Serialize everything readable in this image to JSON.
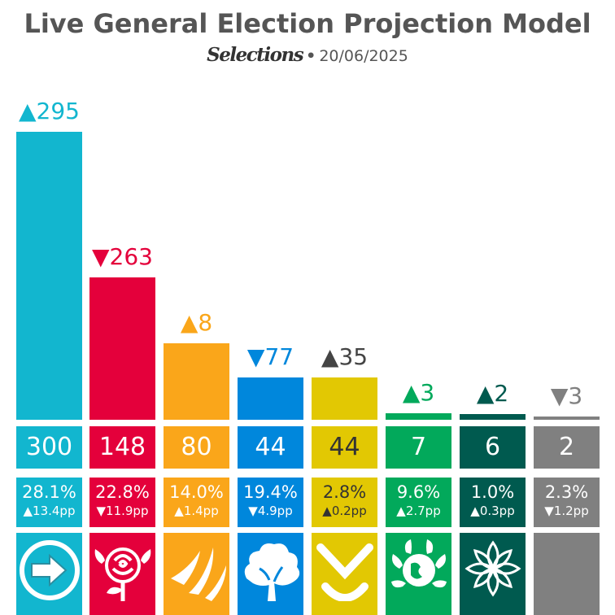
{
  "header": {
    "title": "Live General Election Projection Model",
    "brand": "Selections",
    "separator": "•",
    "date": "20/06/2025"
  },
  "colors": {
    "reform": "#12B6CF",
    "labour": "#E4003B",
    "libdem": "#FAA61A",
    "conservative": "#0087DC",
    "snp": "#E2C803",
    "green": "#02A95B",
    "independent": "#005A4F",
    "other": "#808080"
  },
  "chart_data": {
    "type": "bar",
    "title": "Live General Election Projection Model",
    "ylim": [
      0,
      300
    ],
    "series": [
      {
        "values": [
          300,
          148,
          80,
          44,
          44,
          7,
          6,
          2
        ]
      }
    ],
    "parties": [
      {
        "seats": 300,
        "seat_change": "295",
        "direction": "up",
        "change_label": "▲295",
        "vote_share": "28.1%",
        "swing": "▲13.4pp",
        "color": "#12B6CF",
        "icon": "arrow-icon"
      },
      {
        "seats": 148,
        "seat_change": "263",
        "direction": "down",
        "change_label": "▼263",
        "vote_share": "22.8%",
        "swing": "▼11.9pp",
        "color": "#E4003B",
        "icon": "rose-icon"
      },
      {
        "seats": 80,
        "seat_change": "8",
        "direction": "up",
        "change_label": "▲8",
        "vote_share": "14.0%",
        "swing": "▲1.4pp",
        "color": "#FAA61A",
        "icon": "bird-icon"
      },
      {
        "seats": 44,
        "seat_change": "77",
        "direction": "down",
        "change_label": "▼77",
        "vote_share": "19.4%",
        "swing": "▼4.9pp",
        "color": "#0087DC",
        "icon": "tree-icon"
      },
      {
        "seats": 44,
        "seat_change": "35",
        "direction": "up",
        "change_label": "▲35",
        "vote_share": "2.8%",
        "swing": "▲0.2pp",
        "color": "#E2C803",
        "icon": "saltire-icon"
      },
      {
        "seats": 7,
        "seat_change": "3",
        "direction": "up",
        "change_label": "▲3",
        "vote_share": "9.6%",
        "swing": "▲2.7pp",
        "color": "#02A95B",
        "icon": "globe-icon"
      },
      {
        "seats": 6,
        "seat_change": "2",
        "direction": "up",
        "change_label": "▲2",
        "vote_share": "1.0%",
        "swing": "▲0.3pp",
        "color": "#005A4F",
        "icon": "flower-icon"
      },
      {
        "seats": 2,
        "seat_change": "3",
        "direction": "down",
        "change_label": "▼3",
        "vote_share": "2.3%",
        "swing": "▼1.2pp",
        "color": "#808080",
        "icon": "blank-icon"
      }
    ]
  }
}
